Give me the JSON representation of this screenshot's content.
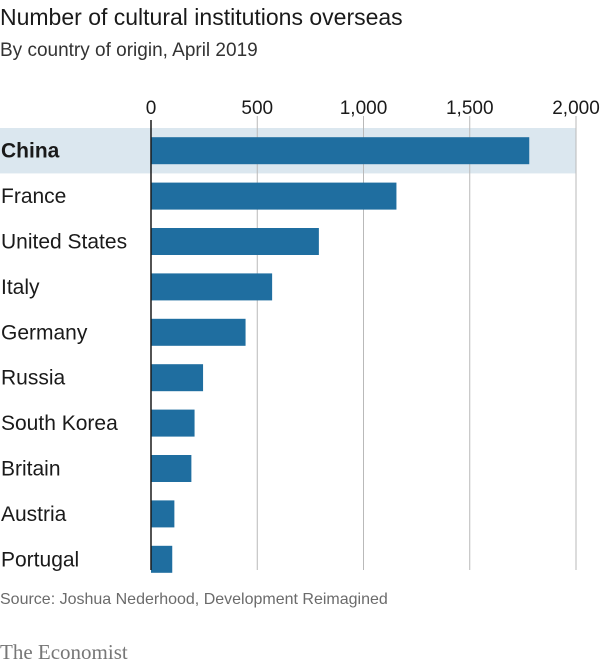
{
  "header": {
    "title": "Number of cultural institutions overseas",
    "subtitle": "By country of origin, April 2019"
  },
  "footer": {
    "source": "Source: Joshua Nederhood, Development Reimagined",
    "brand": "The Economist"
  },
  "colors": {
    "bar": "#1f6ea0",
    "highlight_band": "#dbe7ef",
    "grid": "#b9b9b9",
    "axis": "#1a1a1a"
  },
  "chart_data": {
    "type": "bar",
    "orientation": "horizontal",
    "title": "Number of cultural institutions overseas",
    "subtitle": "By country of origin, April 2019",
    "categories": [
      "China",
      "France",
      "United States",
      "Italy",
      "Germany",
      "Russia",
      "South Korea",
      "Britain",
      "Austria",
      "Portugal"
    ],
    "values": [
      1780,
      1155,
      790,
      570,
      445,
      245,
      205,
      190,
      110,
      100
    ],
    "xlim": [
      0,
      2000
    ],
    "xticks": [
      0,
      500,
      1000,
      1500,
      2000
    ],
    "xtick_labels": [
      "0",
      "500",
      "1,000",
      "1,500",
      "2,000"
    ],
    "highlight_category": "China",
    "grid": true
  }
}
